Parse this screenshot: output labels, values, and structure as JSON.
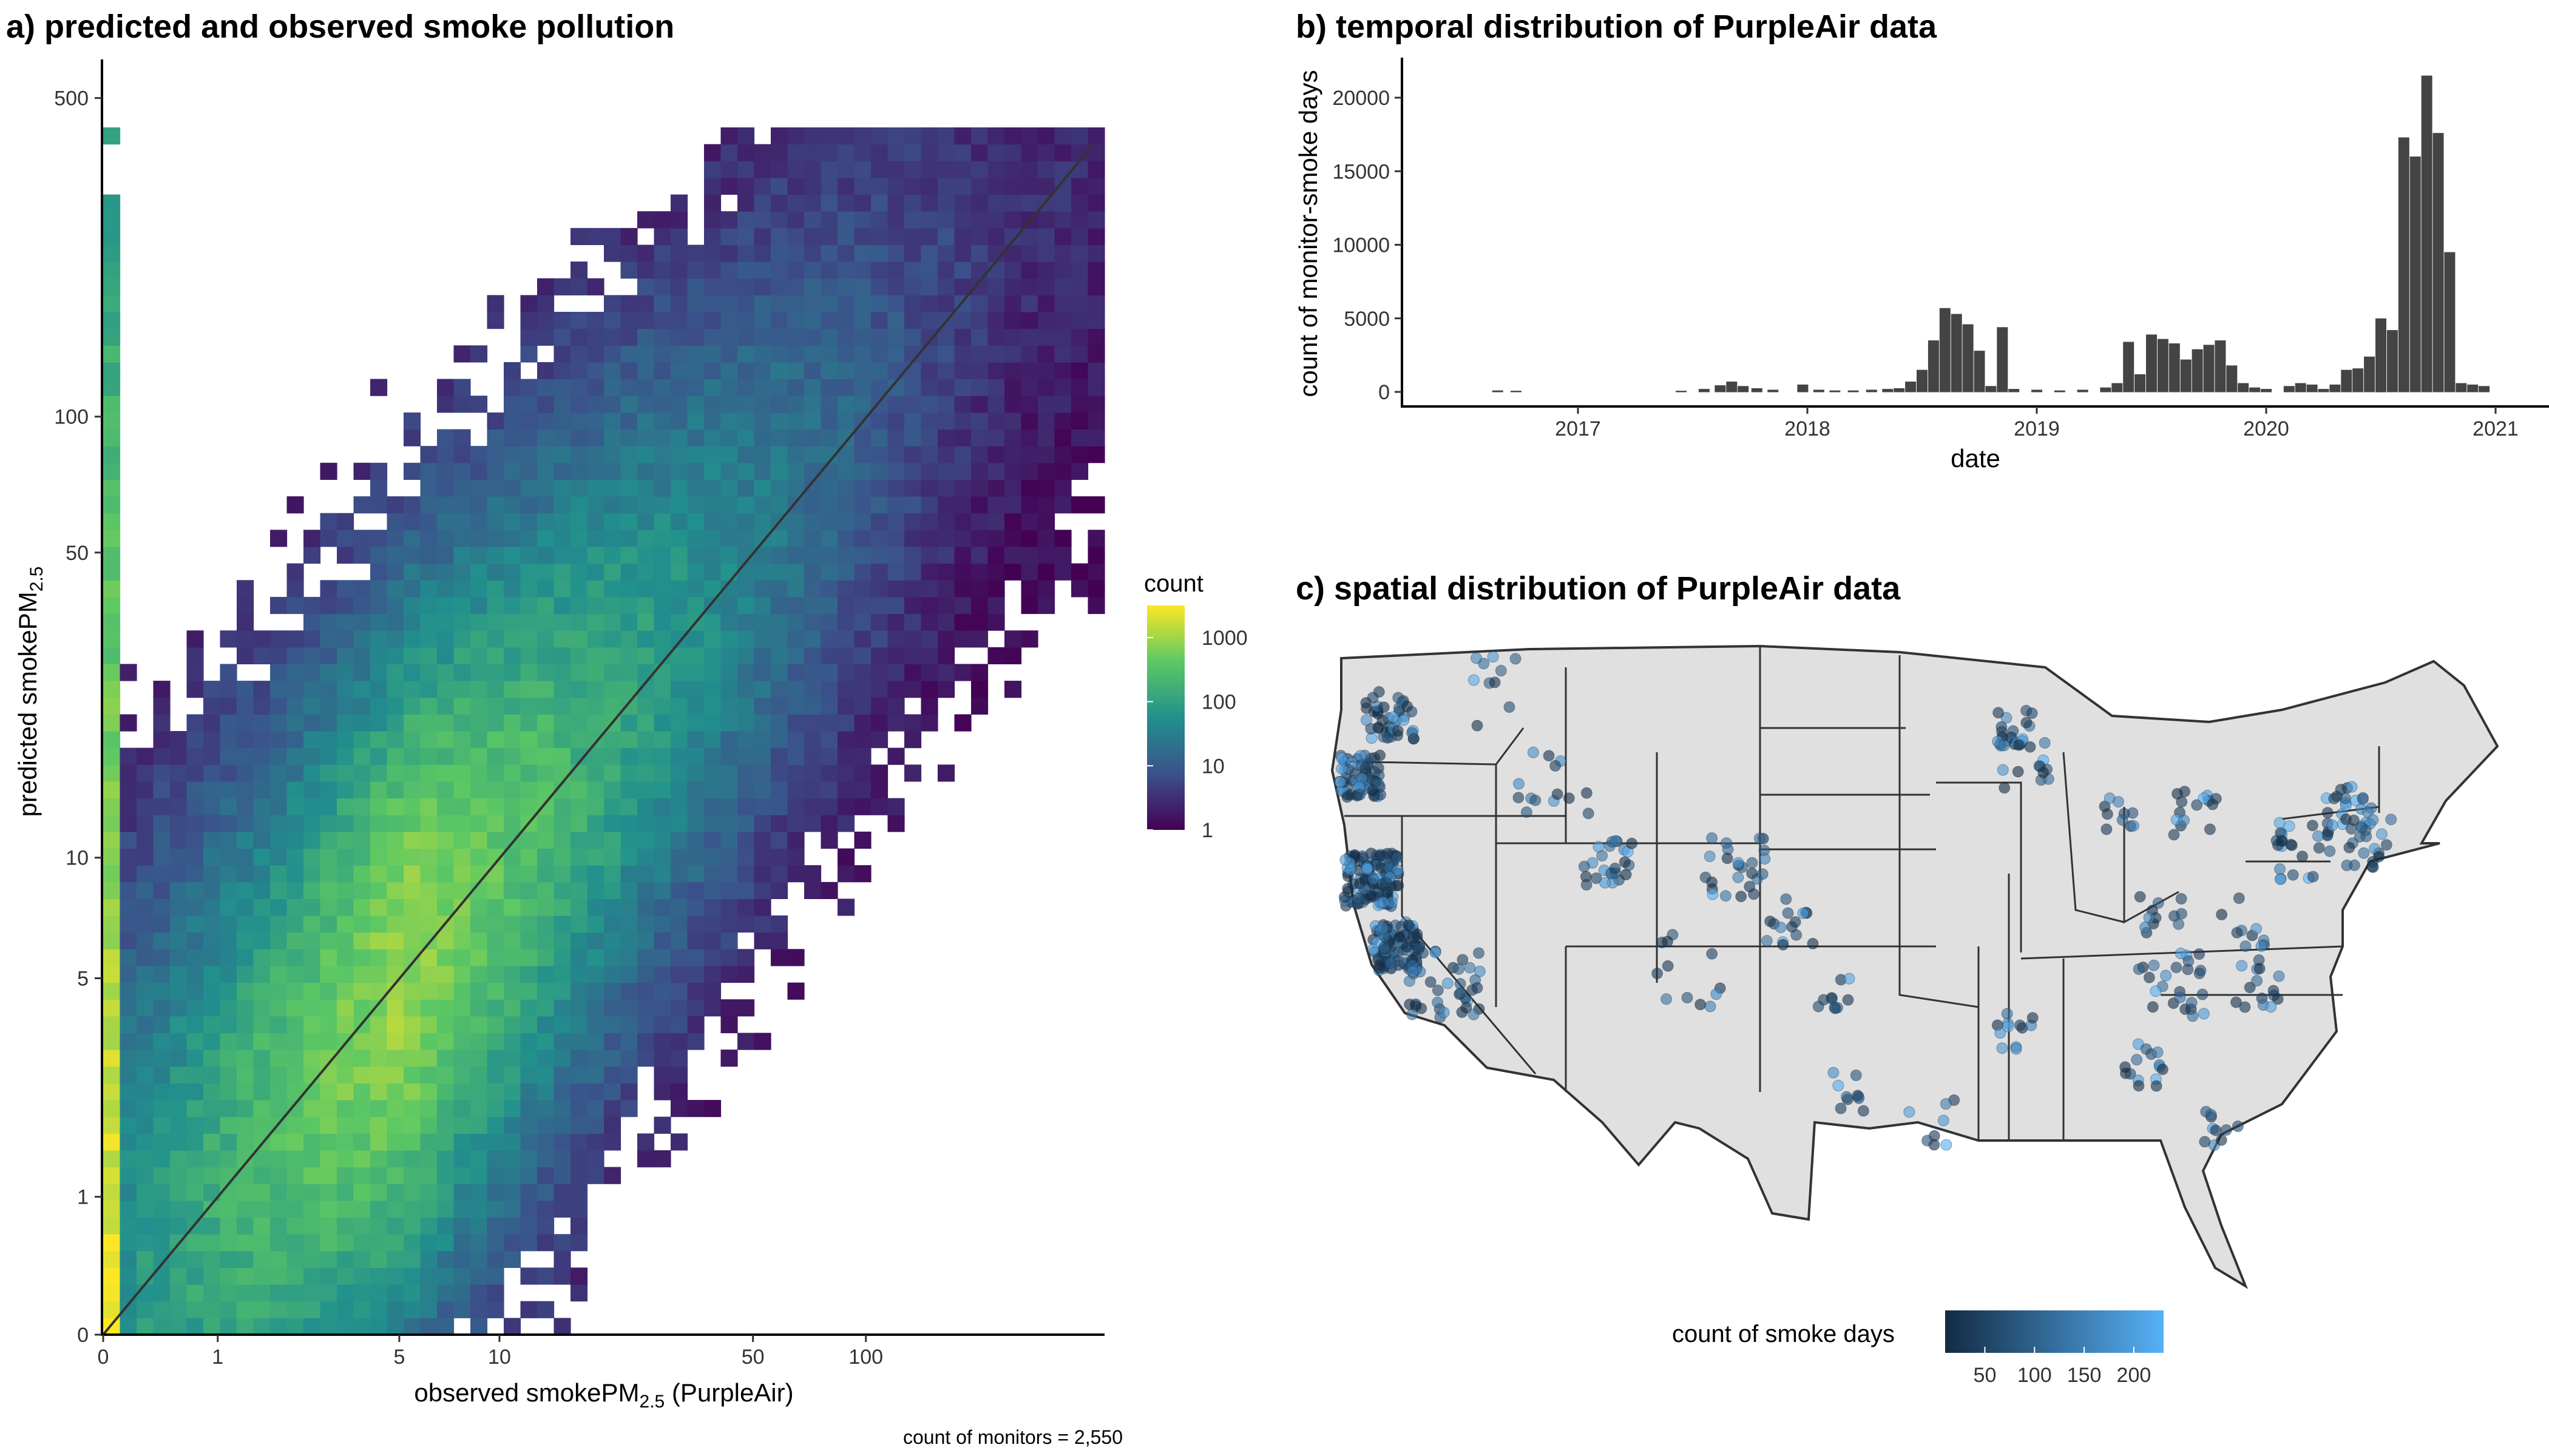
{
  "panel_a": {
    "title": "a) predicted and observed smoke pollution",
    "xlabel": "observed smokePM",
    "xlabel_sub": "2.5",
    "xlabel_suffix": " (PurpleAir)",
    "ylabel": "predicted smokePM",
    "ylabel_sub": "2.5",
    "caption": "count of monitors = 2,550",
    "legend_title": "count"
  },
  "panel_b": {
    "title": "b) temporal distribution of PurpleAir data",
    "xlabel": "date",
    "ylabel": "count of monitor-smoke days"
  },
  "panel_c": {
    "title": "c) spatial distribution of PurpleAir data",
    "legend_title": "count of smoke days"
  },
  "colors": {
    "viridis": [
      "#440154",
      "#3b528b",
      "#21908d",
      "#5dc863",
      "#fde725"
    ],
    "bar": "#444444",
    "map_fill": "#e0e0e0",
    "map_line": "#333333",
    "point_low": "#132b43",
    "point_high": "#56b1f7"
  },
  "chart_data": [
    {
      "type": "heatmap",
      "title": "a) predicted and observed smoke pollution",
      "xlabel": "observed smokePM2.5 (PurpleAir)",
      "ylabel": "predicted smokePM2.5",
      "x_scale": "pseudo-log",
      "y_scale": "pseudo-log",
      "x_ticks": [
        0,
        1,
        5,
        10,
        50,
        100
      ],
      "y_ticks": [
        0,
        1,
        5,
        10,
        50,
        100,
        500
      ],
      "legend": {
        "title": "count",
        "scale": "log",
        "ticks": [
          1,
          10,
          100,
          1000
        ]
      },
      "reference_line": "1:1",
      "annotation": "count of monitors = 2,550"
    },
    {
      "type": "bar",
      "title": "b) temporal distribution of PurpleAir data",
      "xlabel": "date",
      "ylabel": "count of monitor-smoke days",
      "x_ticks": [
        "2017",
        "2018",
        "2019",
        "2020",
        "2021"
      ],
      "y_ticks": [
        0,
        5000,
        10000,
        15000,
        20000
      ],
      "ylim": [
        0,
        22500
      ],
      "bins": [
        {
          "t": 2016.65,
          "v": 100
        },
        {
          "t": 2016.73,
          "v": 80
        },
        {
          "t": 2017.45,
          "v": 80
        },
        {
          "t": 2017.55,
          "v": 200
        },
        {
          "t": 2017.62,
          "v": 450
        },
        {
          "t": 2017.67,
          "v": 700
        },
        {
          "t": 2017.72,
          "v": 400
        },
        {
          "t": 2017.78,
          "v": 250
        },
        {
          "t": 2017.85,
          "v": 150
        },
        {
          "t": 2017.98,
          "v": 500
        },
        {
          "t": 2018.05,
          "v": 150
        },
        {
          "t": 2018.12,
          "v": 100
        },
        {
          "t": 2018.2,
          "v": 100
        },
        {
          "t": 2018.28,
          "v": 150
        },
        {
          "t": 2018.35,
          "v": 200
        },
        {
          "t": 2018.4,
          "v": 250
        },
        {
          "t": 2018.45,
          "v": 700
        },
        {
          "t": 2018.5,
          "v": 1500
        },
        {
          "t": 2018.55,
          "v": 3500
        },
        {
          "t": 2018.6,
          "v": 5700
        },
        {
          "t": 2018.65,
          "v": 5300
        },
        {
          "t": 2018.7,
          "v": 4600
        },
        {
          "t": 2018.75,
          "v": 2800
        },
        {
          "t": 2018.8,
          "v": 400
        },
        {
          "t": 2018.85,
          "v": 4400
        },
        {
          "t": 2018.9,
          "v": 200
        },
        {
          "t": 2019.0,
          "v": 150
        },
        {
          "t": 2019.1,
          "v": 100
        },
        {
          "t": 2019.2,
          "v": 150
        },
        {
          "t": 2019.3,
          "v": 300
        },
        {
          "t": 2019.35,
          "v": 600
        },
        {
          "t": 2019.4,
          "v": 3400
        },
        {
          "t": 2019.45,
          "v": 1200
        },
        {
          "t": 2019.5,
          "v": 3900
        },
        {
          "t": 2019.55,
          "v": 3600
        },
        {
          "t": 2019.6,
          "v": 3300
        },
        {
          "t": 2019.65,
          "v": 2200
        },
        {
          "t": 2019.7,
          "v": 2900
        },
        {
          "t": 2019.75,
          "v": 3200
        },
        {
          "t": 2019.8,
          "v": 3500
        },
        {
          "t": 2019.85,
          "v": 1800
        },
        {
          "t": 2019.9,
          "v": 600
        },
        {
          "t": 2019.95,
          "v": 300
        },
        {
          "t": 2020.0,
          "v": 200
        },
        {
          "t": 2020.1,
          "v": 400
        },
        {
          "t": 2020.15,
          "v": 600
        },
        {
          "t": 2020.2,
          "v": 500
        },
        {
          "t": 2020.25,
          "v": 200
        },
        {
          "t": 2020.3,
          "v": 500
        },
        {
          "t": 2020.35,
          "v": 1500
        },
        {
          "t": 2020.4,
          "v": 1600
        },
        {
          "t": 2020.45,
          "v": 2400
        },
        {
          "t": 2020.5,
          "v": 5000
        },
        {
          "t": 2020.55,
          "v": 4200
        },
        {
          "t": 2020.6,
          "v": 17300
        },
        {
          "t": 2020.65,
          "v": 16000
        },
        {
          "t": 2020.7,
          "v": 21500
        },
        {
          "t": 2020.75,
          "v": 17600
        },
        {
          "t": 2020.8,
          "v": 9500
        },
        {
          "t": 2020.85,
          "v": 600
        },
        {
          "t": 2020.9,
          "v": 500
        },
        {
          "t": 2020.95,
          "v": 400
        }
      ]
    },
    {
      "type": "scatter",
      "title": "c) spatial distribution of PurpleAir data",
      "legend": {
        "title": "count of smoke days",
        "ticks": [
          50,
          100,
          150,
          200
        ]
      }
    }
  ]
}
